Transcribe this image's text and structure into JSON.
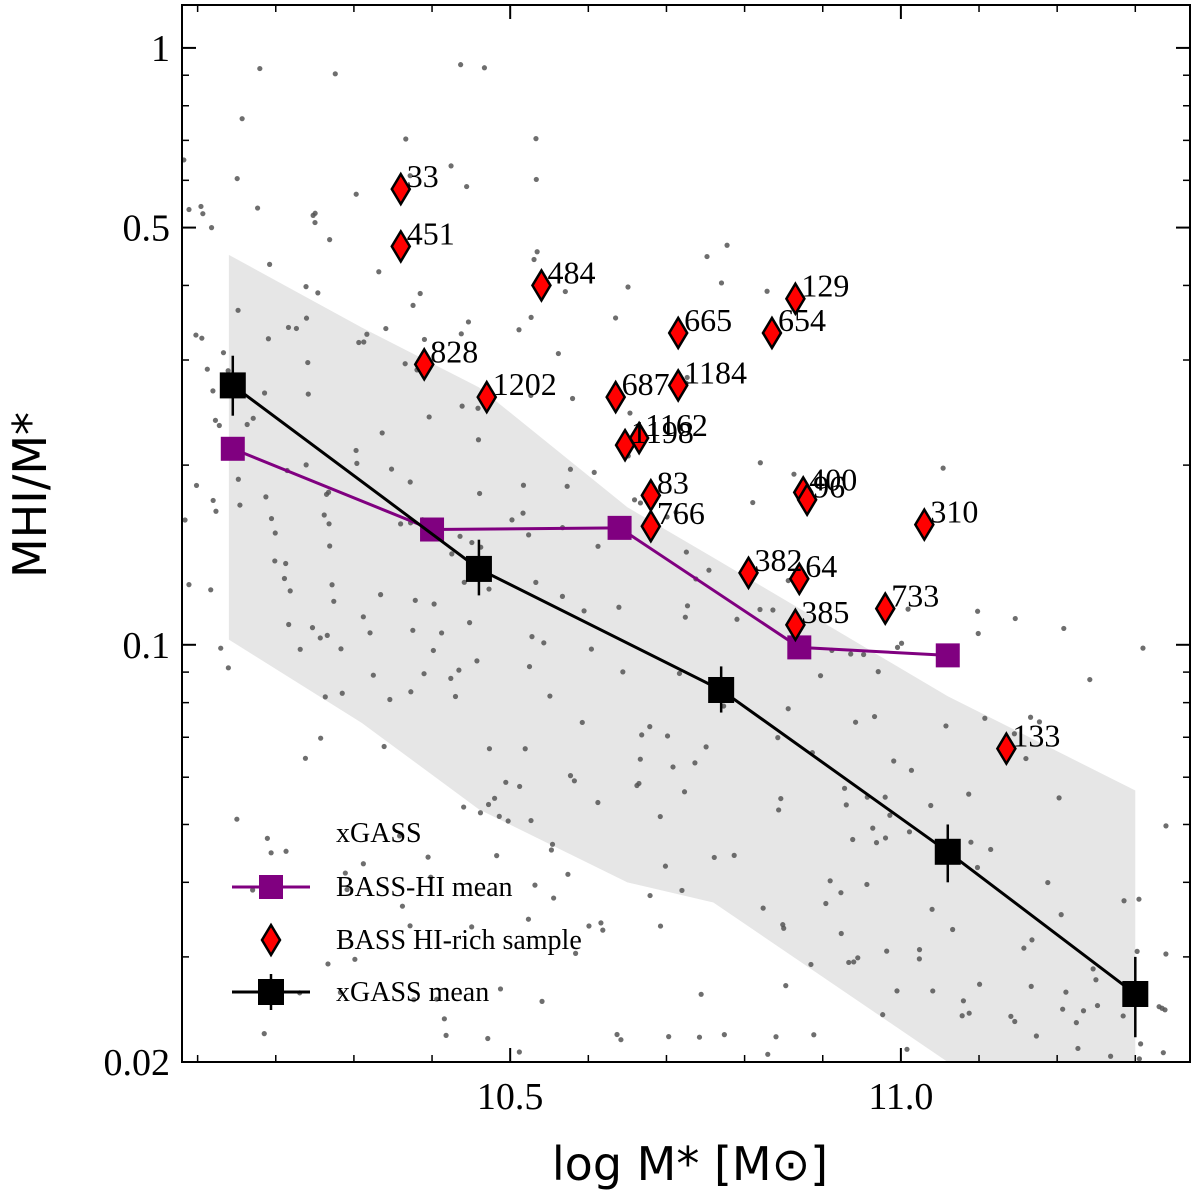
{
  "chart_data": {
    "type": "scatter",
    "title": "",
    "xlabel": "log M* [M⊙]",
    "ylabel": "MHI/M*",
    "xlim": [
      10.08,
      11.37
    ],
    "ylim": [
      0.02,
      1.18
    ],
    "yscale": "log",
    "x_ticks": [
      {
        "value": 10.5,
        "label": "10.5"
      },
      {
        "value": 11.0,
        "label": "11.0"
      }
    ],
    "y_ticks": [
      {
        "value": 1,
        "label": "1"
      },
      {
        "value": 0.5,
        "label": "0.5"
      },
      {
        "value": 0.1,
        "label": "0.1"
      },
      {
        "value": 0.02,
        "label": "0.02"
      }
    ],
    "colors": {
      "xgass_points": "#555555",
      "bass_mean": "#800080",
      "rich_fill": "#ff0000",
      "xgass_mean": "#000000",
      "band": "#e6e6e6"
    },
    "legend_position": "lower-left",
    "legend": [
      {
        "key": "xgass",
        "label": "xGASS"
      },
      {
        "key": "bass_mean",
        "label": "BASS-HI mean"
      },
      {
        "key": "rich",
        "label": "BASS HI-rich sample"
      },
      {
        "key": "xgass_mean",
        "label": "xGASS mean"
      }
    ],
    "band": {
      "x": [
        10.14,
        10.31,
        10.46,
        10.65,
        10.76,
        11.06,
        11.3
      ],
      "upper": [
        0.45,
        0.34,
        0.27,
        0.17,
        0.14,
        0.082,
        0.057
      ],
      "lower": [
        0.102,
        0.074,
        0.053,
        0.04,
        0.037,
        0.02,
        0.02
      ]
    },
    "xgass_mean": [
      {
        "x": 10.145,
        "y": 0.272,
        "yerr_low": 0.242,
        "yerr_high": 0.305
      },
      {
        "x": 10.46,
        "y": 0.134,
        "yerr_low": 0.121,
        "yerr_high": 0.15
      },
      {
        "x": 10.77,
        "y": 0.084,
        "yerr_low": 0.077,
        "yerr_high": 0.092
      },
      {
        "x": 11.06,
        "y": 0.045,
        "yerr_low": 0.04,
        "yerr_high": 0.05
      },
      {
        "x": 11.3,
        "y": 0.026,
        "yerr_low": 0.022,
        "yerr_high": 0.03
      }
    ],
    "bass_mean": [
      {
        "x": 10.145,
        "y": 0.213
      },
      {
        "x": 10.4,
        "y": 0.156
      },
      {
        "x": 10.64,
        "y": 0.157
      },
      {
        "x": 10.87,
        "y": 0.099
      },
      {
        "x": 11.06,
        "y": 0.096
      }
    ],
    "hi_rich": [
      {
        "id": "33",
        "x": 10.36,
        "y": 0.58
      },
      {
        "id": "451",
        "x": 10.36,
        "y": 0.465
      },
      {
        "id": "484",
        "x": 10.54,
        "y": 0.4
      },
      {
        "id": "828",
        "x": 10.39,
        "y": 0.295
      },
      {
        "id": "1202",
        "x": 10.47,
        "y": 0.26
      },
      {
        "id": "687",
        "x": 10.635,
        "y": 0.26
      },
      {
        "id": "1184",
        "x": 10.715,
        "y": 0.272
      },
      {
        "id": "665",
        "x": 10.715,
        "y": 0.333
      },
      {
        "id": "129",
        "x": 10.865,
        "y": 0.38
      },
      {
        "id": "654",
        "x": 10.835,
        "y": 0.333
      },
      {
        "id": "1162",
        "x": 10.665,
        "y": 0.222
      },
      {
        "id": "1198",
        "x": 10.647,
        "y": 0.216
      },
      {
        "id": "400",
        "x": 10.875,
        "y": 0.18
      },
      {
        "id": "96",
        "x": 10.88,
        "y": 0.175
      },
      {
        "id": "83",
        "x": 10.68,
        "y": 0.178
      },
      {
        "id": "766",
        "x": 10.68,
        "y": 0.158
      },
      {
        "id": "310",
        "x": 11.03,
        "y": 0.159
      },
      {
        "id": "382",
        "x": 10.805,
        "y": 0.132
      },
      {
        "id": "64",
        "x": 10.87,
        "y": 0.129
      },
      {
        "id": "385",
        "x": 10.865,
        "y": 0.108
      },
      {
        "id": "733",
        "x": 10.98,
        "y": 0.115
      },
      {
        "id": "133",
        "x": 11.135,
        "y": 0.067
      }
    ],
    "xgass_points_count": 480,
    "xgass_points_seed": 7
  }
}
